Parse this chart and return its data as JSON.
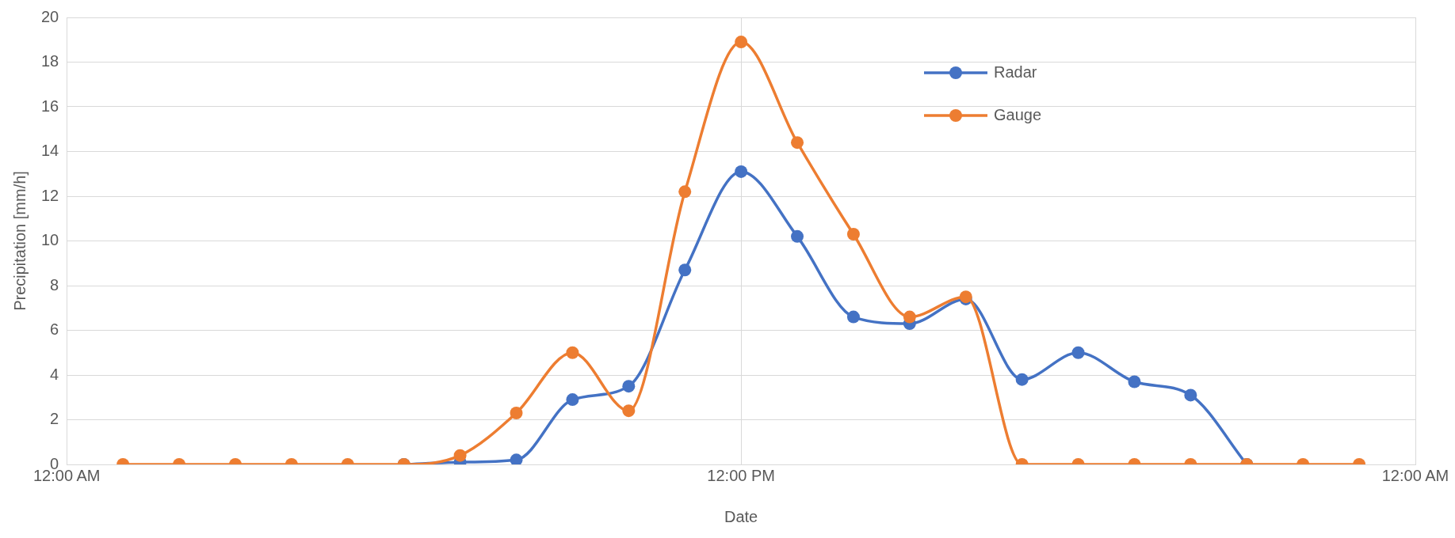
{
  "chart_data": {
    "type": "line",
    "xlabel": "Date",
    "ylabel": "Precipitation [mm/h]",
    "x": [
      1,
      2,
      3,
      4,
      5,
      6,
      7,
      8,
      9,
      10,
      11,
      12,
      13,
      14,
      15,
      16,
      17,
      18,
      19,
      20,
      21,
      22,
      23
    ],
    "series": [
      {
        "name": "Radar",
        "color": "#4472c4",
        "values": [
          null,
          null,
          null,
          null,
          null,
          0,
          0.1,
          0.2,
          2.9,
          3.5,
          8.7,
          13.1,
          10.2,
          6.6,
          6.3,
          7.4,
          3.8,
          5.0,
          3.7,
          3.1,
          0,
          null,
          null
        ]
      },
      {
        "name": "Gauge",
        "color": "#ed7d31",
        "values": [
          0,
          0,
          0,
          0,
          0,
          0,
          0.4,
          2.3,
          5.0,
          2.4,
          12.2,
          18.9,
          14.4,
          10.3,
          6.6,
          7.5,
          0,
          0,
          0,
          0,
          0,
          0,
          0
        ]
      }
    ],
    "xlim": [
      0,
      24
    ],
    "xticks": [
      {
        "value": 0,
        "label": "12:00 AM"
      },
      {
        "value": 12,
        "label": "12:00 PM"
      },
      {
        "value": 24,
        "label": "12:00 AM"
      }
    ],
    "ylim": [
      0,
      20
    ],
    "yticks": [
      0,
      2,
      4,
      6,
      8,
      10,
      12,
      14,
      16,
      18,
      20
    ],
    "grid": true,
    "legend": "top right",
    "marker": "circle",
    "line_style": "solid"
  }
}
